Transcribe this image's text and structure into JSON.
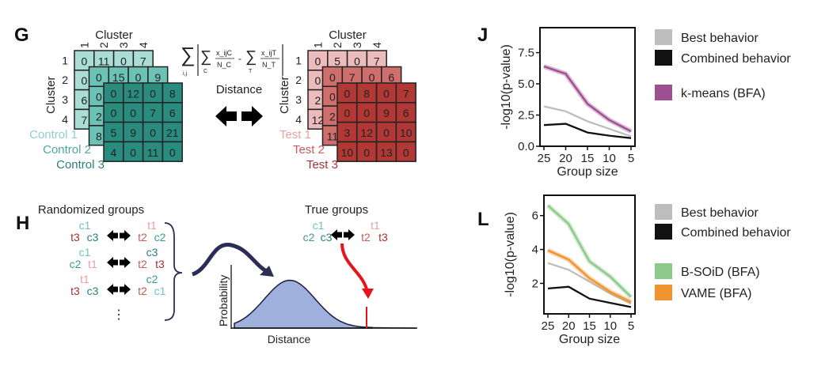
{
  "panels": {
    "G": "G",
    "H": "H",
    "J": "J",
    "L": "L"
  },
  "panel_g": {
    "axis_label": "Cluster",
    "cluster_indices": [
      "1",
      "2",
      "3",
      "4"
    ],
    "formula": {
      "sum_ij": "i,j",
      "sum_c": "C",
      "sum_t": "T",
      "num_c": "x_ijC",
      "den_c": "N_C",
      "num_t": "x_ijT",
      "den_t": "N_T"
    },
    "distance_label": "Distance",
    "control": [
      {
        "label": "Control 1",
        "color": "#a9ddd6",
        "text_color": "#8fd0c8",
        "values": [
          [
            0,
            11,
            0,
            7
          ],
          [
            0,
            null,
            null,
            null
          ],
          [
            6,
            null,
            null,
            null
          ],
          [
            7,
            null,
            null,
            null
          ]
        ]
      },
      {
        "label": "Control 2",
        "color": "#6cc2b5",
        "text_color": "#4aa899",
        "values": [
          [
            0,
            15,
            0,
            9
          ],
          [
            0,
            null,
            null,
            null
          ],
          [
            2,
            null,
            null,
            null
          ],
          [
            8,
            null,
            null,
            null
          ]
        ]
      },
      {
        "label": "Control 3",
        "color": "#2a8b7f",
        "text_color": "#2a8276",
        "values": [
          [
            0,
            12,
            0,
            8
          ],
          [
            0,
            0,
            7,
            6
          ],
          [
            5,
            9,
            0,
            21
          ],
          [
            4,
            0,
            11,
            0
          ]
        ]
      }
    ],
    "test": [
      {
        "label": "Test 1",
        "color": "#ebbcbb",
        "text_color": "#e8a0a0",
        "values": [
          [
            0,
            5,
            0,
            7
          ],
          [
            0,
            null,
            null,
            null
          ],
          [
            2,
            null,
            null,
            null
          ],
          [
            12,
            null,
            null,
            null
          ]
        ]
      },
      {
        "label": "Test 2",
        "color": "#cf6f6d",
        "text_color": "#c85a5a",
        "values": [
          [
            0,
            7,
            0,
            6
          ],
          [
            0,
            null,
            null,
            null
          ],
          [
            2,
            null,
            null,
            null
          ],
          [
            11,
            null,
            null,
            null
          ]
        ]
      },
      {
        "label": "Test 3",
        "color": "#b13835",
        "text_color": "#a83030",
        "values": [
          [
            0,
            8,
            0,
            7
          ],
          [
            0,
            0,
            9,
            6
          ],
          [
            3,
            12,
            0,
            10
          ],
          [
            10,
            0,
            13,
            0
          ]
        ]
      }
    ]
  },
  "panel_h": {
    "randomized_title": "Randomized groups",
    "true_title": "True groups",
    "randomized_rows": [
      {
        "left": [
          "c1",
          "t3",
          "c3"
        ],
        "right": [
          "t1",
          "t2",
          "c2"
        ]
      },
      {
        "left": [
          "c1",
          "c2",
          "t1"
        ],
        "right": [
          "c3",
          "t2",
          "t3"
        ]
      },
      {
        "left": [
          "t1",
          "t3",
          "c3"
        ],
        "right": [
          "c2",
          "t2",
          "c1"
        ]
      }
    ],
    "ellipsis": "⋮",
    "true_left": [
      "c1",
      "c2",
      "c3"
    ],
    "true_right": [
      "t1",
      "t2",
      "t3"
    ],
    "y_axis_label": "Probability",
    "x_axis_label": "Distance",
    "distribution_color": "#9fb0dc",
    "observed_color": "#e8141b"
  },
  "chart_data": [
    {
      "type": "line",
      "panel": "J",
      "xlabel": "Group size",
      "ylabel": "-log10(p-value)",
      "x": [
        25,
        20,
        15,
        10,
        5
      ],
      "x_reversed": true,
      "ylim": [
        0,
        9.5
      ],
      "yticks": [
        "0.0",
        "2.5",
        "5.0",
        "7.5"
      ],
      "ytick_values": [
        0,
        2.5,
        5,
        7.5
      ],
      "xticks": [
        "25",
        "20",
        "15",
        "10",
        "5"
      ],
      "legend_position": "right",
      "series": [
        {
          "name": "Best behavior",
          "color": "#bdbdbd",
          "values": [
            3.2,
            2.8,
            2.0,
            1.4,
            0.8
          ]
        },
        {
          "name": "Combined behavior",
          "color": "#111111",
          "values": [
            1.7,
            1.8,
            1.1,
            0.85,
            0.65
          ]
        },
        {
          "name": "k-means (BFA)",
          "color": "#9e4f92",
          "values": [
            6.4,
            5.8,
            3.4,
            2.1,
            1.2
          ]
        }
      ]
    },
    {
      "type": "line",
      "panel": "L",
      "xlabel": "Group size",
      "ylabel": "-log10(p-value)",
      "x": [
        25,
        20,
        15,
        10,
        5
      ],
      "x_reversed": true,
      "ylim": [
        0.2,
        7.2
      ],
      "yticks": [
        "2",
        "4",
        "6"
      ],
      "ytick_values": [
        2,
        4,
        6
      ],
      "xticks": [
        "25",
        "20",
        "15",
        "10",
        "5"
      ],
      "legend_position": "right",
      "series": [
        {
          "name": "Best behavior",
          "color": "#bdbdbd",
          "values": [
            3.2,
            2.8,
            2.1,
            1.4,
            0.8
          ]
        },
        {
          "name": "Combined behavior",
          "color": "#111111",
          "values": [
            1.7,
            1.8,
            1.1,
            0.85,
            0.6
          ]
        },
        {
          "name": "B-SOiD (BFA)",
          "color": "#8cc98a",
          "values": [
            6.6,
            5.5,
            3.3,
            2.4,
            1.2
          ]
        },
        {
          "name": "VAME (BFA)",
          "color": "#f0922e",
          "values": [
            3.95,
            3.4,
            2.3,
            1.5,
            0.9
          ]
        }
      ]
    }
  ]
}
